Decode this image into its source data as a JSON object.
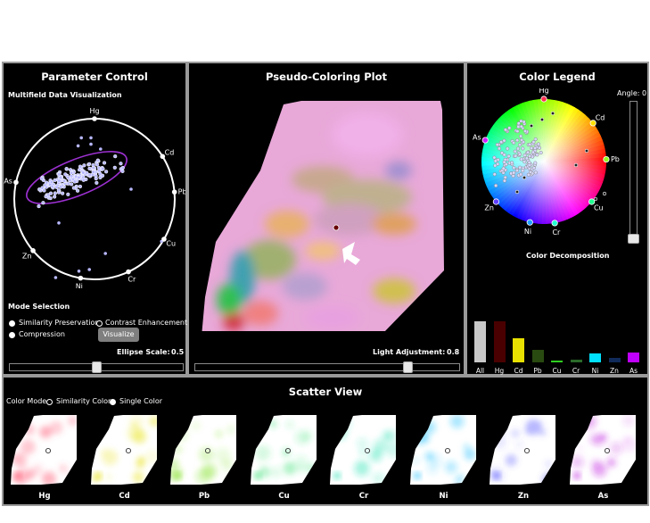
{
  "param_panel": {
    "title": "Parameter Control",
    "subtitle": "Multifield Data Visualization",
    "axes": [
      "Hg",
      "Cd",
      "Pb",
      "Cu",
      "Cr",
      "Ni",
      "Zn",
      "As"
    ],
    "mode_title": "Mode Selection",
    "modes": [
      {
        "label": "Similarity Preservation",
        "selected": true
      },
      {
        "label": "Contrast Enhancement",
        "selected": false
      },
      {
        "label": "Compression",
        "selected": true
      }
    ],
    "visualize_label": "Visualize",
    "ellipse_label": "Ellipse Scale:",
    "ellipse_value": "0.5",
    "ellipse_slider": 0.5
  },
  "plot_panel": {
    "title": "Pseudo-Coloring Plot",
    "light_label": "Light Adjustment:",
    "light_value": "0.8",
    "light_slider": 0.8
  },
  "legend_panel": {
    "title": "Color Legend",
    "angle_label": "Angle: 0",
    "axes": [
      "Hg",
      "Cd",
      "Pb",
      "Cu",
      "Cr",
      "Ni",
      "Zn",
      "As"
    ],
    "decomp_title": "Color Decomposition",
    "bars": [
      {
        "label": "All",
        "value": 0.92,
        "color": "#c8c8c8"
      },
      {
        "label": "Hg",
        "value": 0.92,
        "color": "#4a0000"
      },
      {
        "label": "Cd",
        "value": 0.55,
        "color": "#e8e000"
      },
      {
        "label": "Pb",
        "value": 0.28,
        "color": "#294a10"
      },
      {
        "label": "Cu",
        "value": 0.05,
        "color": "#2fd020"
      },
      {
        "label": "Cr",
        "value": 0.07,
        "color": "#2a6a2a"
      },
      {
        "label": "Ni",
        "value": 0.2,
        "color": "#00e0ff"
      },
      {
        "label": "Zn",
        "value": 0.1,
        "color": "#102a5a"
      },
      {
        "label": "As",
        "value": 0.22,
        "color": "#c000ff"
      }
    ]
  },
  "scatter_panel": {
    "title": "Scatter View",
    "color_mode_label": "Color Mode",
    "options": [
      {
        "label": "Similarity Color",
        "selected": false
      },
      {
        "label": "Single Color",
        "selected": true
      }
    ],
    "items": [
      {
        "label": "Hg",
        "color": "#ff4d6a"
      },
      {
        "label": "Cd",
        "color": "#e6e000"
      },
      {
        "label": "Pb",
        "color": "#7fe020"
      },
      {
        "label": "Cu",
        "color": "#30e070"
      },
      {
        "label": "Cr",
        "color": "#20e0b0"
      },
      {
        "label": "Ni",
        "color": "#20c0ff"
      },
      {
        "label": "Zn",
        "color": "#5050ff"
      },
      {
        "label": "As",
        "color": "#c020e0"
      }
    ]
  }
}
